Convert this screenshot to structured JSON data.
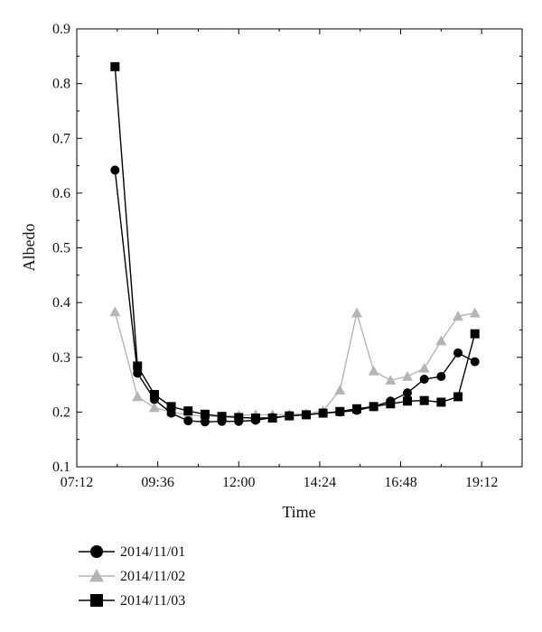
{
  "chart_data": {
    "type": "line",
    "xlabel": "Time",
    "ylabel": "Albedo",
    "x_ticks": [
      "07:12",
      "09:36",
      "12:00",
      "14:24",
      "16:48",
      "19:12"
    ],
    "y_ticks": [
      "0.1",
      "0.2",
      "0.3",
      "0.4",
      "0.5",
      "0.6",
      "0.7",
      "0.8",
      "0.9"
    ],
    "xlim": [
      "07:12",
      "20:24"
    ],
    "ylim": [
      0.1,
      0.9
    ],
    "grid": false,
    "legend_position": "bottom-left",
    "series": [
      {
        "name": "2014/11/01",
        "marker": "circle",
        "color": "#000000",
        "points": [
          {
            "x": "08:20",
            "y": 0.642
          },
          {
            "x": "09:00",
            "y": 0.271
          },
          {
            "x": "09:30",
            "y": 0.223
          },
          {
            "x": "10:00",
            "y": 0.198
          },
          {
            "x": "10:30",
            "y": 0.184
          },
          {
            "x": "11:00",
            "y": 0.182
          },
          {
            "x": "11:30",
            "y": 0.183
          },
          {
            "x": "12:00",
            "y": 0.183
          },
          {
            "x": "12:30",
            "y": 0.185
          },
          {
            "x": "13:00",
            "y": 0.19
          },
          {
            "x": "13:30",
            "y": 0.193
          },
          {
            "x": "14:00",
            "y": 0.195
          },
          {
            "x": "14:30",
            "y": 0.198
          },
          {
            "x": "15:00",
            "y": 0.2
          },
          {
            "x": "15:30",
            "y": 0.203
          },
          {
            "x": "16:00",
            "y": 0.21
          },
          {
            "x": "16:30",
            "y": 0.22
          },
          {
            "x": "17:00",
            "y": 0.235
          },
          {
            "x": "17:30",
            "y": 0.26
          },
          {
            "x": "18:00",
            "y": 0.265
          },
          {
            "x": "18:30",
            "y": 0.308
          },
          {
            "x": "19:00",
            "y": 0.292
          }
        ]
      },
      {
        "name": "2014/11/02",
        "marker": "triangle",
        "color": "#b5b5b5",
        "points": [
          {
            "x": "08:20",
            "y": 0.383
          },
          {
            "x": "09:00",
            "y": 0.228
          },
          {
            "x": "09:30",
            "y": 0.208
          },
          {
            "x": "10:00",
            "y": 0.2
          },
          {
            "x": "10:30",
            "y": 0.195
          },
          {
            "x": "11:00",
            "y": 0.192
          },
          {
            "x": "11:30",
            "y": 0.192
          },
          {
            "x": "12:00",
            "y": 0.194
          },
          {
            "x": "12:30",
            "y": 0.195
          },
          {
            "x": "13:00",
            "y": 0.195
          },
          {
            "x": "13:30",
            "y": 0.196
          },
          {
            "x": "14:00",
            "y": 0.197
          },
          {
            "x": "14:30",
            "y": 0.202
          },
          {
            "x": "15:00",
            "y": 0.24
          },
          {
            "x": "15:30",
            "y": 0.381
          },
          {
            "x": "16:00",
            "y": 0.275
          },
          {
            "x": "16:30",
            "y": 0.258
          },
          {
            "x": "17:00",
            "y": 0.265
          },
          {
            "x": "17:30",
            "y": 0.28
          },
          {
            "x": "18:00",
            "y": 0.33
          },
          {
            "x": "18:30",
            "y": 0.375
          },
          {
            "x": "19:00",
            "y": 0.381
          }
        ]
      },
      {
        "name": "2014/11/03",
        "marker": "square",
        "color": "#000000",
        "points": [
          {
            "x": "08:20",
            "y": 0.831
          },
          {
            "x": "09:00",
            "y": 0.284
          },
          {
            "x": "09:30",
            "y": 0.232
          },
          {
            "x": "10:00",
            "y": 0.21
          },
          {
            "x": "10:30",
            "y": 0.202
          },
          {
            "x": "11:00",
            "y": 0.196
          },
          {
            "x": "11:30",
            "y": 0.192
          },
          {
            "x": "12:00",
            "y": 0.19
          },
          {
            "x": "12:30",
            "y": 0.189
          },
          {
            "x": "13:00",
            "y": 0.189
          },
          {
            "x": "13:30",
            "y": 0.193
          },
          {
            "x": "14:00",
            "y": 0.195
          },
          {
            "x": "14:30",
            "y": 0.198
          },
          {
            "x": "15:00",
            "y": 0.201
          },
          {
            "x": "15:30",
            "y": 0.206
          },
          {
            "x": "16:00",
            "y": 0.21
          },
          {
            "x": "16:30",
            "y": 0.215
          },
          {
            "x": "17:00",
            "y": 0.22
          },
          {
            "x": "17:30",
            "y": 0.221
          },
          {
            "x": "18:00",
            "y": 0.218
          },
          {
            "x": "18:30",
            "y": 0.228
          },
          {
            "x": "19:00",
            "y": 0.343
          }
        ]
      }
    ]
  }
}
